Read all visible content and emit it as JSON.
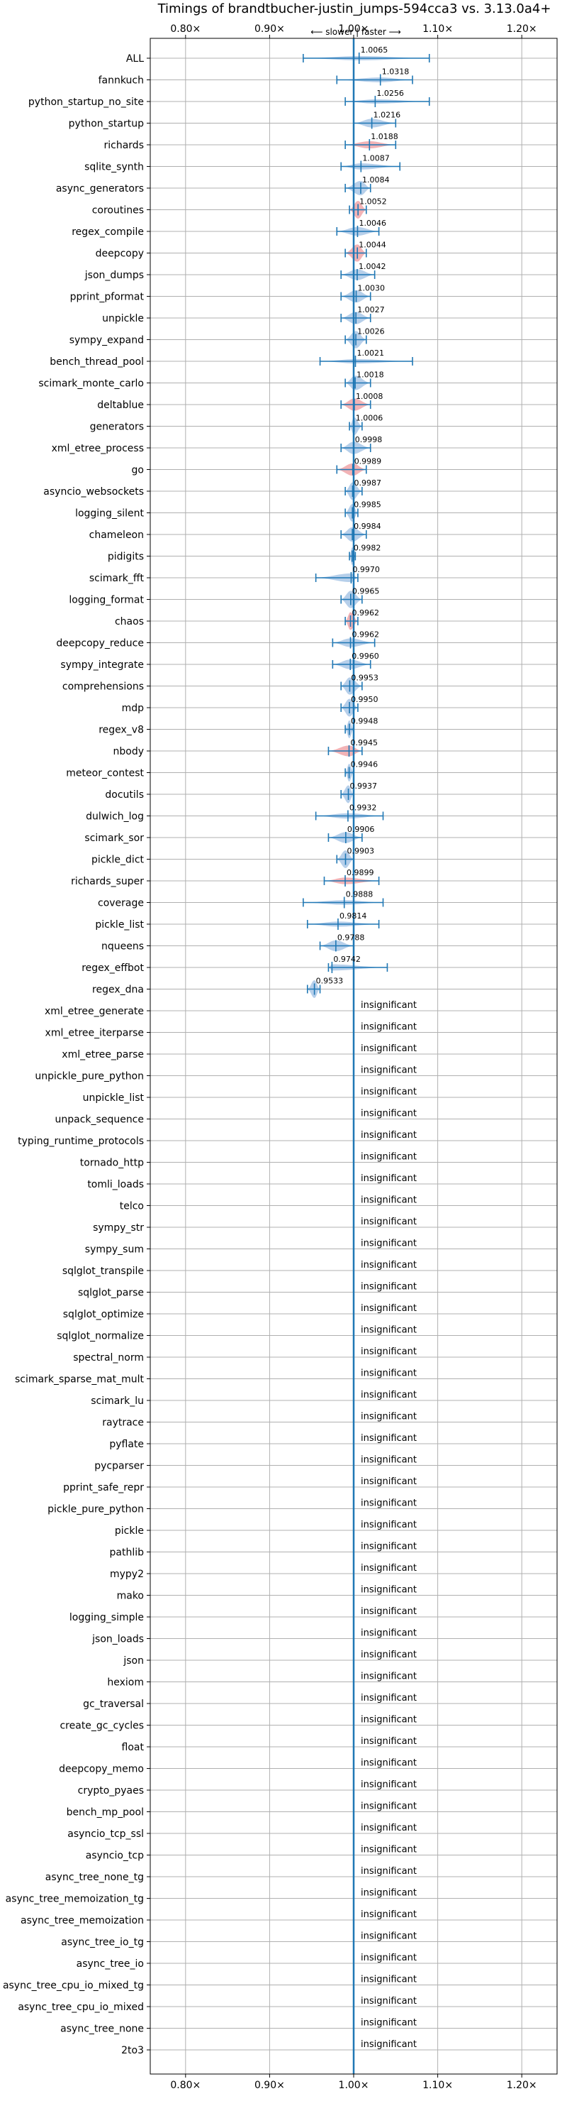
{
  "chart_data": {
    "type": "violin",
    "title": "Timings of brandtbucher-justin_jumps-594cca3 vs. 3.13.0a4+",
    "direction_note": "⟵ slower | faster ⟶",
    "x_ticks": [
      "0.80×",
      "0.90×",
      "1.00×",
      "1.10×",
      "1.20×"
    ],
    "x_tick_values": [
      0.8,
      0.9,
      1.0,
      1.1,
      1.2
    ],
    "xlim": [
      0.758,
      1.242
    ],
    "grid": true,
    "insignificant_label": "insignificant",
    "benchmarks": [
      {
        "name": "ALL",
        "value": 1.0065,
        "label": "1.0065",
        "lo": 0.94,
        "hi": 1.09,
        "slower": false
      },
      {
        "name": "fannkuch",
        "value": 1.0318,
        "label": "1.0318",
        "lo": 0.98,
        "hi": 1.07,
        "slower": false
      },
      {
        "name": "python_startup_no_site",
        "value": 1.0256,
        "label": "1.0256",
        "lo": 0.99,
        "hi": 1.09,
        "slower": false
      },
      {
        "name": "python_startup",
        "value": 1.0216,
        "label": "1.0216",
        "lo": 1.0,
        "hi": 1.05,
        "slower": false
      },
      {
        "name": "richards",
        "value": 1.0188,
        "label": "1.0188",
        "lo": 0.99,
        "hi": 1.05,
        "slower": true
      },
      {
        "name": "sqlite_synth",
        "value": 1.0087,
        "label": "1.0087",
        "lo": 0.985,
        "hi": 1.055,
        "slower": false
      },
      {
        "name": "async_generators",
        "value": 1.0084,
        "label": "1.0084",
        "lo": 0.99,
        "hi": 1.02,
        "slower": false
      },
      {
        "name": "coroutines",
        "value": 1.0052,
        "label": "1.0052",
        "lo": 0.995,
        "hi": 1.015,
        "slower": true
      },
      {
        "name": "regex_compile",
        "value": 1.0046,
        "label": "1.0046",
        "lo": 0.98,
        "hi": 1.03,
        "slower": false
      },
      {
        "name": "deepcopy",
        "value": 1.0044,
        "label": "1.0044",
        "lo": 0.99,
        "hi": 1.015,
        "slower": true
      },
      {
        "name": "json_dumps",
        "value": 1.0042,
        "label": "1.0042",
        "lo": 0.985,
        "hi": 1.025,
        "slower": false
      },
      {
        "name": "pprint_pformat",
        "value": 1.003,
        "label": "1.0030",
        "lo": 0.985,
        "hi": 1.02,
        "slower": false
      },
      {
        "name": "unpickle",
        "value": 1.0027,
        "label": "1.0027",
        "lo": 0.985,
        "hi": 1.02,
        "slower": false
      },
      {
        "name": "sympy_expand",
        "value": 1.0026,
        "label": "1.0026",
        "lo": 0.99,
        "hi": 1.015,
        "slower": false
      },
      {
        "name": "bench_thread_pool",
        "value": 1.0021,
        "label": "1.0021",
        "lo": 0.96,
        "hi": 1.07,
        "slower": false
      },
      {
        "name": "scimark_monte_carlo",
        "value": 1.0018,
        "label": "1.0018",
        "lo": 0.99,
        "hi": 1.02,
        "slower": false
      },
      {
        "name": "deltablue",
        "value": 1.0008,
        "label": "1.0008",
        "lo": 0.985,
        "hi": 1.02,
        "slower": true
      },
      {
        "name": "generators",
        "value": 1.0006,
        "label": "1.0006",
        "lo": 0.995,
        "hi": 1.01,
        "slower": false
      },
      {
        "name": "xml_etree_process",
        "value": 0.9998,
        "label": "0.9998",
        "lo": 0.985,
        "hi": 1.02,
        "slower": false
      },
      {
        "name": "go",
        "value": 0.9989,
        "label": "0.9989",
        "lo": 0.98,
        "hi": 1.015,
        "slower": true
      },
      {
        "name": "asyncio_websockets",
        "value": 0.9987,
        "label": "0.9987",
        "lo": 0.99,
        "hi": 1.01,
        "slower": false
      },
      {
        "name": "logging_silent",
        "value": 0.9985,
        "label": "0.9985",
        "lo": 0.99,
        "hi": 1.005,
        "slower": false
      },
      {
        "name": "chameleon",
        "value": 0.9984,
        "label": "0.9984",
        "lo": 0.985,
        "hi": 1.015,
        "slower": false
      },
      {
        "name": "pidigits",
        "value": 0.9982,
        "label": "0.9982",
        "lo": 0.995,
        "hi": 1.002,
        "slower": false
      },
      {
        "name": "scimark_fft",
        "value": 0.997,
        "label": "0.9970",
        "lo": 0.955,
        "hi": 1.005,
        "slower": false
      },
      {
        "name": "logging_format",
        "value": 0.9965,
        "label": "0.9965",
        "lo": 0.985,
        "hi": 1.01,
        "slower": false
      },
      {
        "name": "chaos",
        "value": 0.9962,
        "label": "0.9962",
        "lo": 0.99,
        "hi": 1.005,
        "slower": true
      },
      {
        "name": "deepcopy_reduce",
        "value": 0.9962,
        "label": "0.9962",
        "lo": 0.975,
        "hi": 1.025,
        "slower": false
      },
      {
        "name": "sympy_integrate",
        "value": 0.996,
        "label": "0.9960",
        "lo": 0.975,
        "hi": 1.02,
        "slower": false
      },
      {
        "name": "comprehensions",
        "value": 0.9953,
        "label": "0.9953",
        "lo": 0.985,
        "hi": 1.01,
        "slower": false
      },
      {
        "name": "mdp",
        "value": 0.995,
        "label": "0.9950",
        "lo": 0.985,
        "hi": 1.005,
        "slower": false
      },
      {
        "name": "regex_v8",
        "value": 0.9948,
        "label": "0.9948",
        "lo": 0.99,
        "hi": 1.0,
        "slower": false
      },
      {
        "name": "nbody",
        "value": 0.9945,
        "label": "0.9945",
        "lo": 0.97,
        "hi": 1.01,
        "slower": true
      },
      {
        "name": "meteor_contest",
        "value": 0.9946,
        "label": "0.9946",
        "lo": 0.99,
        "hi": 1.0,
        "slower": false
      },
      {
        "name": "docutils",
        "value": 0.9937,
        "label": "0.9937",
        "lo": 0.985,
        "hi": 1.0,
        "slower": false
      },
      {
        "name": "dulwich_log",
        "value": 0.9932,
        "label": "0.9932",
        "lo": 0.955,
        "hi": 1.035,
        "slower": false
      },
      {
        "name": "scimark_sor",
        "value": 0.9906,
        "label": "0.9906",
        "lo": 0.97,
        "hi": 1.01,
        "slower": false
      },
      {
        "name": "pickle_dict",
        "value": 0.9903,
        "label": "0.9903",
        "lo": 0.98,
        "hi": 1.0,
        "slower": false
      },
      {
        "name": "richards_super",
        "value": 0.9899,
        "label": "0.9899",
        "lo": 0.965,
        "hi": 1.03,
        "slower": true
      },
      {
        "name": "coverage",
        "value": 0.9888,
        "label": "0.9888",
        "lo": 0.94,
        "hi": 1.035,
        "slower": false
      },
      {
        "name": "pickle_list",
        "value": 0.9814,
        "label": "0.9814",
        "lo": 0.945,
        "hi": 1.03,
        "slower": false
      },
      {
        "name": "nqueens",
        "value": 0.9788,
        "label": "0.9788",
        "lo": 0.96,
        "hi": 1.0,
        "slower": false
      },
      {
        "name": "regex_effbot",
        "value": 0.9742,
        "label": "0.9742",
        "lo": 0.97,
        "hi": 1.04,
        "slower": false
      },
      {
        "name": "regex_dna",
        "value": 0.9533,
        "label": "0.9533",
        "lo": 0.945,
        "hi": 0.96,
        "slower": false
      }
    ],
    "insignificant_benchmarks": [
      "xml_etree_generate",
      "xml_etree_iterparse",
      "xml_etree_parse",
      "unpickle_pure_python",
      "unpickle_list",
      "unpack_sequence",
      "typing_runtime_protocols",
      "tornado_http",
      "tomli_loads",
      "telco",
      "sympy_str",
      "sympy_sum",
      "sqlglot_transpile",
      "sqlglot_parse",
      "sqlglot_optimize",
      "sqlglot_normalize",
      "spectral_norm",
      "scimark_sparse_mat_mult",
      "scimark_lu",
      "raytrace",
      "pyflate",
      "pycparser",
      "pprint_safe_repr",
      "pickle_pure_python",
      "pickle",
      "pathlib",
      "mypy2",
      "mako",
      "logging_simple",
      "json_loads",
      "json",
      "hexiom",
      "gc_traversal",
      "create_gc_cycles",
      "float",
      "deepcopy_memo",
      "crypto_pyaes",
      "bench_mp_pool",
      "asyncio_tcp_ssl",
      "asyncio_tcp",
      "async_tree_none_tg",
      "async_tree_memoization_tg",
      "async_tree_memoization",
      "async_tree_io_tg",
      "async_tree_io",
      "async_tree_cpu_io_mixed_tg",
      "async_tree_cpu_io_mixed",
      "async_tree_none",
      "2to3"
    ],
    "colors": {
      "faster_violin": "#a9c7e6",
      "slower_violin": "#f0a6a9",
      "bar": "#1f77b4",
      "grid": "#b0b0b0",
      "baseline": "#1f77b4"
    }
  }
}
